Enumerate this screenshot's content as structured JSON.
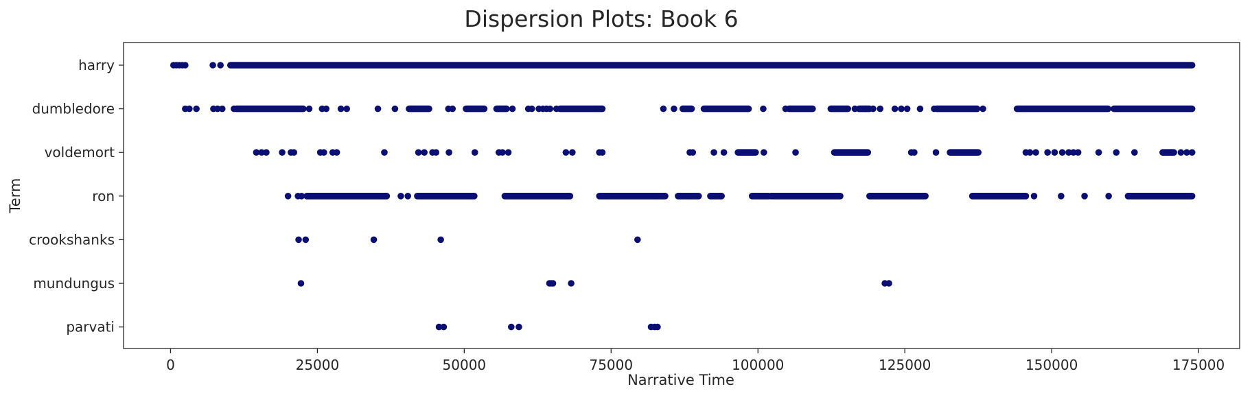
{
  "chart_data": {
    "type": "scatter",
    "title": "Dispersion Plots: Book 6",
    "xlabel": "Narrative Time",
    "ylabel": "Term",
    "xlim": [
      -8000,
      182000
    ],
    "x_ticks": [
      0,
      25000,
      50000,
      75000,
      100000,
      125000,
      150000,
      175000
    ],
    "grid": false,
    "marker_color": "#0b0f72",
    "categories": [
      "harry",
      "dumbledore",
      "voldemort",
      "ron",
      "crookshanks",
      "mundungus",
      "parvati"
    ],
    "series": [
      {
        "name": "harry",
        "x": [
          500,
          1000,
          1500,
          2000,
          2500,
          7200,
          8500
        ],
        "ranges": [
          [
            10200,
            173900
          ]
        ]
      },
      {
        "name": "dumbledore",
        "x": [
          2500,
          3200,
          4400,
          7300,
          8000,
          8800,
          10800,
          23600,
          25800,
          26500,
          29000,
          30000,
          35300,
          38200,
          47300,
          48000,
          58200,
          60900,
          61500,
          62700,
          63400,
          64000,
          64600,
          65700,
          83900,
          85700,
          100900,
          104700,
          116500,
          118300,
          119600,
          120800,
          123300,
          124400,
          125400,
          127600,
          130000,
          138300
        ],
        "ranges": [
          [
            11200,
            22600
          ],
          [
            40600,
            44000
          ],
          [
            50300,
            53400
          ],
          [
            55500,
            57200
          ],
          [
            66300,
            73500
          ],
          [
            87200,
            88700
          ],
          [
            90800,
            98400
          ],
          [
            105300,
            109300
          ],
          [
            112400,
            115300
          ],
          [
            117200,
            119000
          ],
          [
            130400,
            137300
          ],
          [
            144100,
            159600
          ],
          [
            160600,
            173900
          ]
        ]
      },
      {
        "name": "voldemort",
        "x": [
          14600,
          15500,
          16300,
          19000,
          20500,
          21000,
          25500,
          26100,
          27600,
          28300,
          36400,
          42200,
          43200,
          44600,
          45200,
          47400,
          51800,
          55900,
          56500,
          57500,
          67300,
          68400,
          73000,
          73500,
          88400,
          88900,
          92500,
          94200,
          101000,
          106400,
          126100,
          126600,
          130300,
          145600,
          146300,
          147300,
          149300,
          150500,
          151800,
          152900,
          153700,
          154500,
          158000,
          161000,
          164100,
          172000,
          173000,
          173900
        ],
        "ranges": [
          [
            96600,
            99600
          ],
          [
            113000,
            118700
          ],
          [
            132700,
            137500
          ],
          [
            168900,
            170800
          ]
        ]
      },
      {
        "name": "ron",
        "x": [
          20000,
          21700,
          22300,
          39200,
          40400,
          147000,
          151600,
          155600,
          159700
        ],
        "ranges": [
          [
            23200,
            36800
          ],
          [
            42000,
            51700
          ],
          [
            56900,
            68000
          ],
          [
            73000,
            84200
          ],
          [
            86400,
            89900
          ],
          [
            91900,
            93800
          ],
          [
            99000,
            101800
          ],
          [
            102200,
            114000
          ],
          [
            119000,
            128500
          ],
          [
            136500,
            145600
          ],
          [
            163000,
            173900
          ]
        ]
      },
      {
        "name": "crookshanks",
        "x": [
          21800,
          23000,
          34600,
          46000,
          79500
        ]
      },
      {
        "name": "mundungus",
        "x": [
          22200,
          64500,
          64800,
          65100,
          68200,
          121600,
          122300
        ]
      },
      {
        "name": "parvati",
        "x": [
          45700,
          46500,
          58000,
          59300,
          81800,
          82400,
          82900
        ]
      }
    ]
  }
}
